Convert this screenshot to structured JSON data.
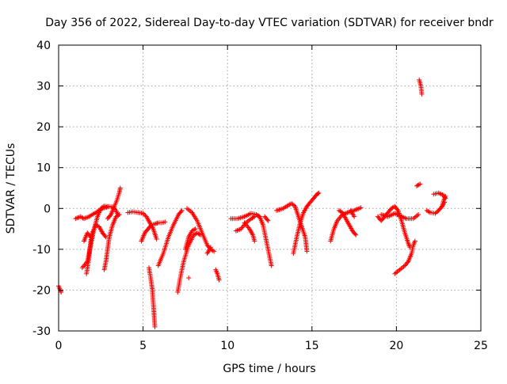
{
  "chart_data": {
    "type": "scatter",
    "title": "Day 356 of 2022, Sidereal Day-to-day VTEC variation (SDTVAR) for receiver bndr",
    "xlabel": "GPS time / hours",
    "ylabel": "SDTVAR / TECUs",
    "xlim": [
      0,
      25
    ],
    "ylim": [
      -30,
      40
    ],
    "x_ticks": [
      "0",
      "5",
      "10",
      "15",
      "20",
      "25"
    ],
    "y_ticks": [
      "-30",
      "-20",
      "-10",
      "0",
      "10",
      "20",
      "30",
      "40"
    ],
    "grid": true,
    "marker": "plus",
    "color": "#ff0000",
    "series": [
      {
        "name": "s01",
        "points": [
          [
            0.0,
            -19
          ],
          [
            0.1,
            -20
          ],
          [
            0.15,
            -20.5
          ]
        ]
      },
      {
        "name": "s02",
        "points": [
          [
            1.0,
            -2.5
          ],
          [
            1.3,
            -2
          ],
          [
            1.5,
            -2.5
          ],
          [
            1.8,
            -2
          ],
          [
            2.2,
            -1
          ],
          [
            2.6,
            0
          ],
          [
            3.0,
            0.5
          ],
          [
            3.2,
            0.3
          ],
          [
            3.4,
            -0.5
          ],
          [
            3.5,
            -1.5
          ]
        ]
      },
      {
        "name": "s03",
        "points": [
          [
            1.4,
            -14.5
          ],
          [
            1.7,
            -13
          ],
          [
            1.9,
            -9
          ],
          [
            2.1,
            -5
          ],
          [
            2.3,
            -2
          ],
          [
            2.5,
            0
          ],
          [
            2.7,
            0.6
          ],
          [
            2.9,
            0.5
          ]
        ]
      },
      {
        "name": "s04",
        "points": [
          [
            1.65,
            -16
          ],
          [
            1.8,
            -12
          ],
          [
            1.9,
            -8
          ],
          [
            2.0,
            -6
          ],
          [
            2.2,
            -4
          ],
          [
            2.4,
            -4.5
          ],
          [
            2.6,
            -6
          ],
          [
            2.8,
            -7
          ]
        ]
      },
      {
        "name": "s05",
        "points": [
          [
            1.5,
            -8
          ],
          [
            1.7,
            -6
          ],
          [
            1.9,
            -7
          ]
        ]
      },
      {
        "name": "s06",
        "points": [
          [
            2.7,
            -15
          ],
          [
            2.8,
            -13
          ],
          [
            2.9,
            -10
          ],
          [
            3.0,
            -7
          ],
          [
            3.2,
            -4
          ],
          [
            3.4,
            -2
          ],
          [
            3.6,
            -1.5
          ]
        ]
      },
      {
        "name": "s07",
        "points": [
          [
            2.9,
            -2.5
          ],
          [
            3.1,
            -1.5
          ],
          [
            3.3,
            0.5
          ],
          [
            3.45,
            2
          ],
          [
            3.6,
            4
          ],
          [
            3.65,
            5
          ]
        ]
      },
      {
        "name": "s08",
        "points": [
          [
            4.1,
            -1
          ],
          [
            4.4,
            -0.8
          ],
          [
            4.7,
            -1
          ],
          [
            5.0,
            -1.2
          ],
          [
            5.2,
            -2
          ],
          [
            5.4,
            -3.5
          ],
          [
            5.6,
            -5
          ],
          [
            5.8,
            -7.5
          ]
        ]
      },
      {
        "name": "s09",
        "points": [
          [
            4.9,
            -8
          ],
          [
            5.1,
            -6
          ],
          [
            5.3,
            -5
          ],
          [
            5.5,
            -4
          ],
          [
            5.7,
            -3.8
          ],
          [
            5.9,
            -3.5
          ],
          [
            6.1,
            -3.5
          ],
          [
            6.3,
            -3.3
          ]
        ]
      },
      {
        "name": "s10",
        "points": [
          [
            5.35,
            -14.5
          ],
          [
            5.45,
            -17
          ],
          [
            5.55,
            -20
          ],
          [
            5.6,
            -23
          ],
          [
            5.65,
            -26
          ],
          [
            5.7,
            -29
          ]
        ]
      },
      {
        "name": "s11",
        "points": [
          [
            5.9,
            -14
          ],
          [
            6.2,
            -11
          ],
          [
            6.5,
            -7
          ],
          [
            6.8,
            -4
          ],
          [
            7.1,
            -1.5
          ],
          [
            7.3,
            -0.5
          ]
        ]
      },
      {
        "name": "s12",
        "points": [
          [
            7.05,
            -20.5
          ],
          [
            7.2,
            -17
          ],
          [
            7.4,
            -13
          ],
          [
            7.7,
            -9
          ],
          [
            8.0,
            -6.5
          ],
          [
            8.2,
            -6
          ],
          [
            8.4,
            -6.5
          ]
        ]
      },
      {
        "name": "s13",
        "points": [
          [
            7.7,
            -17
          ]
        ]
      },
      {
        "name": "s14",
        "points": [
          [
            7.5,
            -10
          ],
          [
            7.7,
            -7
          ],
          [
            7.9,
            -5.5
          ],
          [
            8.1,
            -5
          ]
        ]
      },
      {
        "name": "s15",
        "points": [
          [
            7.6,
            0
          ],
          [
            7.9,
            -1
          ],
          [
            8.2,
            -3
          ],
          [
            8.5,
            -6
          ],
          [
            8.8,
            -9
          ],
          [
            9.0,
            -10
          ],
          [
            9.2,
            -10.5
          ]
        ]
      },
      {
        "name": "s16",
        "points": [
          [
            8.8,
            -11
          ],
          [
            9.0,
            -9.5
          ]
        ]
      },
      {
        "name": "s17",
        "points": [
          [
            9.3,
            -15
          ],
          [
            9.4,
            -16
          ],
          [
            9.5,
            -17.5
          ]
        ]
      },
      {
        "name": "s18",
        "points": [
          [
            10.2,
            -2.5
          ],
          [
            10.6,
            -2.5
          ],
          [
            11.0,
            -2
          ],
          [
            11.4,
            -1.2
          ],
          [
            11.7,
            -1.5
          ],
          [
            11.9,
            -2
          ]
        ]
      },
      {
        "name": "s19",
        "points": [
          [
            10.5,
            -5.5
          ],
          [
            10.8,
            -5
          ],
          [
            11.1,
            -3.5
          ],
          [
            11.4,
            -2.5
          ],
          [
            11.6,
            -2
          ]
        ]
      },
      {
        "name": "s20",
        "points": [
          [
            11.0,
            -3.5
          ],
          [
            11.3,
            -5
          ],
          [
            11.5,
            -6.5
          ],
          [
            11.6,
            -8
          ]
        ]
      },
      {
        "name": "s21",
        "points": [
          [
            11.7,
            -1.5
          ],
          [
            11.9,
            -2
          ],
          [
            12.1,
            -4
          ],
          [
            12.3,
            -8
          ],
          [
            12.5,
            -12
          ],
          [
            12.6,
            -14
          ]
        ]
      },
      {
        "name": "s22",
        "points": [
          [
            12.2,
            -2
          ],
          [
            12.4,
            -3
          ]
        ]
      },
      {
        "name": "s23",
        "points": [
          [
            12.9,
            -0.5
          ],
          [
            13.3,
            0
          ],
          [
            13.6,
            0.8
          ],
          [
            13.8,
            1.2
          ],
          [
            14.0,
            0.5
          ],
          [
            14.2,
            -2
          ],
          [
            14.4,
            -4.5
          ],
          [
            14.6,
            -7
          ],
          [
            14.7,
            -10.5
          ]
        ]
      },
      {
        "name": "s24",
        "points": [
          [
            13.9,
            -11
          ],
          [
            14.1,
            -7
          ],
          [
            14.3,
            -3.5
          ],
          [
            14.5,
            -1
          ],
          [
            14.7,
            0.5
          ],
          [
            14.9,
            1.5
          ],
          [
            15.1,
            2.5
          ],
          [
            15.3,
            3.5
          ],
          [
            15.4,
            3.8
          ]
        ]
      },
      {
        "name": "s25",
        "points": [
          [
            16.1,
            -8
          ],
          [
            16.3,
            -5
          ],
          [
            16.5,
            -3
          ],
          [
            16.8,
            -1.5
          ],
          [
            17.1,
            -1
          ],
          [
            17.5,
            -0.5
          ],
          [
            17.9,
            0.2
          ]
        ]
      },
      {
        "name": "s26",
        "points": [
          [
            16.6,
            -0.5
          ],
          [
            16.8,
            -1
          ],
          [
            17.0,
            -2.5
          ],
          [
            17.2,
            -4
          ],
          [
            17.4,
            -5.5
          ],
          [
            17.6,
            -6.5
          ]
        ]
      },
      {
        "name": "s27",
        "points": [
          [
            17.3,
            -0.5
          ],
          [
            17.5,
            -2
          ]
        ]
      },
      {
        "name": "s28",
        "points": [
          [
            18.9,
            -2
          ],
          [
            19.1,
            -3
          ],
          [
            19.3,
            -2
          ],
          [
            19.5,
            -1
          ],
          [
            19.7,
            0
          ],
          [
            19.9,
            0.5
          ],
          [
            20.1,
            -0.5
          ],
          [
            20.3,
            -3
          ],
          [
            20.5,
            -6
          ],
          [
            20.7,
            -8.5
          ],
          [
            20.8,
            -9.5
          ]
        ]
      },
      {
        "name": "s29",
        "points": [
          [
            19.9,
            -16
          ],
          [
            20.2,
            -15
          ],
          [
            20.5,
            -14
          ],
          [
            20.7,
            -13
          ],
          [
            20.9,
            -11
          ],
          [
            21.0,
            -9
          ],
          [
            21.1,
            -8
          ]
        ]
      },
      {
        "name": "s30",
        "points": [
          [
            19.1,
            -1.5
          ],
          [
            19.5,
            -2
          ],
          [
            19.9,
            -1.2
          ],
          [
            20.2,
            -1.8
          ],
          [
            20.6,
            -2.5
          ],
          [
            21.0,
            -2.5
          ],
          [
            21.3,
            -1.5
          ]
        ]
      },
      {
        "name": "s31",
        "points": [
          [
            21.2,
            5.5
          ],
          [
            21.4,
            6
          ]
        ]
      },
      {
        "name": "s32",
        "points": [
          [
            21.35,
            31.5
          ],
          [
            21.45,
            30
          ],
          [
            21.5,
            28
          ]
        ]
      },
      {
        "name": "s33",
        "points": [
          [
            21.8,
            -0.5
          ],
          [
            22.0,
            -1
          ],
          [
            22.3,
            -1.2
          ],
          [
            22.5,
            -0.5
          ],
          [
            22.7,
            0.5
          ],
          [
            22.8,
            2
          ],
          [
            22.9,
            3
          ]
        ]
      },
      {
        "name": "s34",
        "points": [
          [
            22.2,
            3.5
          ],
          [
            22.5,
            3.8
          ],
          [
            22.8,
            3.2
          ],
          [
            22.9,
            2.5
          ]
        ]
      },
      {
        "name": "s35",
        "points": [
          [
            22.7,
            0.5
          ],
          [
            22.85,
            1.5
          ]
        ]
      }
    ]
  }
}
